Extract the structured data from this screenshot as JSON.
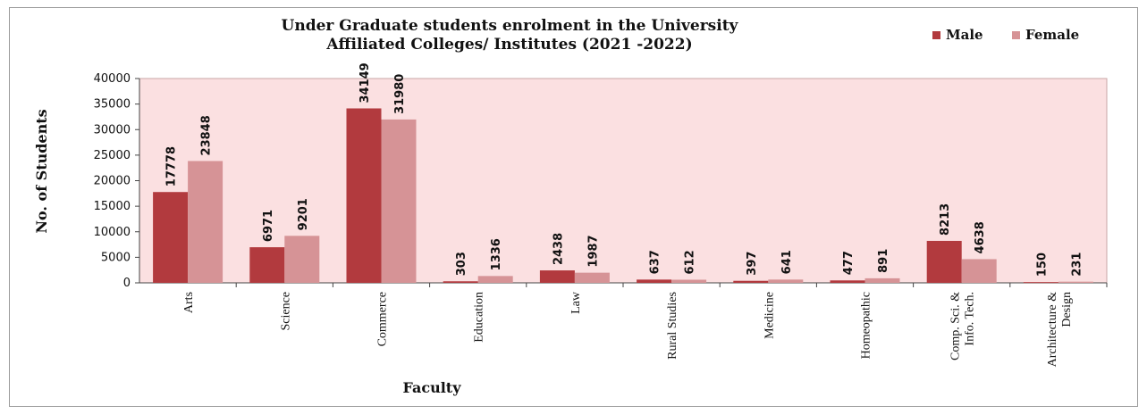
{
  "chart_data": {
    "type": "bar",
    "title": [
      "Under Graduate students enrolment in the University",
      "Affiliated Colleges/ Institutes (2021 -2022)"
    ],
    "xlabel": "Faculty",
    "ylabel": "No. of Students",
    "ylim": [
      0,
      40000
    ],
    "yticks": [
      "0",
      "5000",
      "10000",
      "15000",
      "20000",
      "25000",
      "30000",
      "35000",
      "40000"
    ],
    "categories": [
      [
        "Arts"
      ],
      [
        "Science"
      ],
      [
        "Commerce"
      ],
      [
        "Education"
      ],
      [
        "Law"
      ],
      [
        "Rural Studies"
      ],
      [
        "Medicine"
      ],
      [
        "Homeopathic"
      ],
      [
        "Comp. Sci. &",
        "Info. Tech."
      ],
      [
        "Architecture &",
        "Design"
      ]
    ],
    "series": [
      {
        "name": "Male",
        "color": "#b23a3e",
        "values": [
          17778,
          6971,
          34149,
          303,
          2438,
          637,
          397,
          477,
          8213,
          150
        ]
      },
      {
        "name": "Female",
        "color": "#d69396",
        "values": [
          23848,
          9201,
          31980,
          1336,
          1987,
          612,
          641,
          891,
          4638,
          231
        ]
      }
    ],
    "plot_background": "#fbe0e1",
    "legend_position": "top-right",
    "grid": false
  }
}
